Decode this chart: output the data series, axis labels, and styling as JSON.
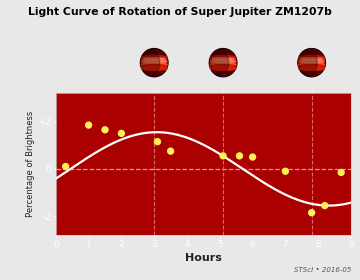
{
  "title": "Light Curve of Rotation of Super Jupiter ZM1207b",
  "xlabel": "Hours",
  "ylabel": "Percentage of Brightness",
  "background_color": "#aa0000",
  "top_bg_color": "#111111",
  "fig_bg_color": "#e8e8e8",
  "data_x": [
    0.3,
    1.0,
    1.5,
    2.0,
    3.1,
    3.5,
    5.1,
    5.6,
    6.0,
    7.0,
    7.8,
    8.2,
    8.7
  ],
  "data_y": [
    0.1,
    1.85,
    1.65,
    1.5,
    1.15,
    0.75,
    0.55,
    0.55,
    0.5,
    -0.1,
    -1.85,
    -1.55,
    -0.15
  ],
  "dashed_vlines": [
    3.0,
    5.1,
    7.8
  ],
  "ylim": [
    -2.8,
    3.2
  ],
  "xlim": [
    0,
    9
  ],
  "yticks": [
    -2,
    0,
    2
  ],
  "ytick_labels": [
    "-2",
    "0",
    "+2"
  ],
  "xticks": [
    0,
    1,
    2,
    3,
    4,
    5,
    6,
    7,
    8,
    9
  ],
  "credit": "STScI • 2016-05",
  "dot_color": "#ffee55",
  "dot_size": 28,
  "curve_color": "#ffffff",
  "hline_color": "#ddbbbb",
  "vline_color": "#dd7777",
  "curve_amplitude": 1.55,
  "curve_period": 10.5,
  "curve_phase": 0.45
}
